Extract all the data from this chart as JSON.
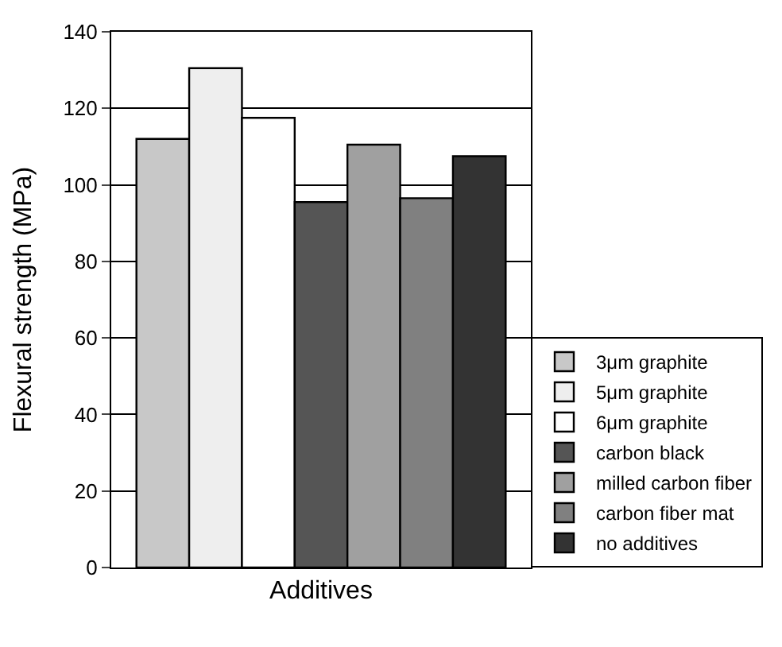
{
  "chart_data": {
    "type": "bar",
    "ylabel": "Flexural strength (MPa)",
    "xlabel": "Additives",
    "categories": [
      null
    ],
    "series": [
      {
        "name": "3μm graphite",
        "color": "#c8c8c8",
        "values": [
          112
        ]
      },
      {
        "name": "5μm graphite",
        "color": "#eeeeee",
        "values": [
          130.5
        ]
      },
      {
        "name": "6μm graphite",
        "color": "#ffffff",
        "values": [
          117.5
        ]
      },
      {
        "name": "carbon black",
        "color": "#555555",
        "values": [
          95.5
        ]
      },
      {
        "name": "milled carbon fiber",
        "color": "#a0a0a0",
        "values": [
          110.5
        ]
      },
      {
        "name": "carbon fiber mat",
        "color": "#808080",
        "values": [
          96.5
        ]
      },
      {
        "name": "no additives",
        "color": "#333333",
        "values": [
          107.5
        ]
      }
    ],
    "ylim": [
      0,
      140
    ],
    "yticks": [
      0,
      20,
      40,
      60,
      80,
      100,
      120,
      140
    ],
    "grid": "y",
    "legend": "bottom right"
  }
}
